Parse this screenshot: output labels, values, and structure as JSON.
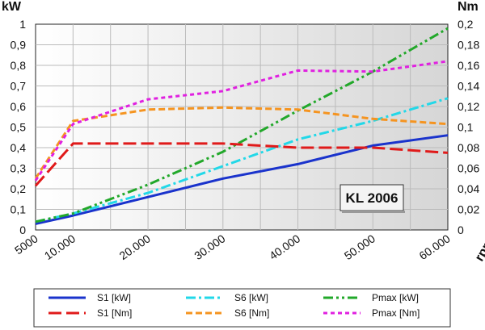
{
  "chart_data": {
    "type": "line",
    "x_axis": {
      "unit_label": "rpm",
      "ticks": [
        5000,
        10000,
        20000,
        30000,
        40000,
        50000,
        60000
      ],
      "tick_labels": [
        "5000",
        "10.000",
        "20.000",
        "30.000",
        "40.000",
        "50.000",
        "60.000"
      ],
      "range": [
        5000,
        60000
      ]
    },
    "y_left": {
      "unit_label": "kW",
      "range": [
        0,
        1
      ],
      "ticks": [
        0,
        0.1,
        0.2,
        0.3,
        0.4,
        0.5,
        0.6,
        0.7,
        0.8,
        0.9,
        1
      ],
      "tick_labels": [
        "0",
        "0,1",
        "0,2",
        "0,3",
        "0,4",
        "0,5",
        "0,6",
        "0,7",
        "0,8",
        "0,9",
        "1"
      ]
    },
    "y_right": {
      "unit_label": "Nm",
      "range": [
        0,
        0.2
      ],
      "ticks": [
        0,
        0.02,
        0.04,
        0.06,
        0.08,
        0.1,
        0.12,
        0.14,
        0.16,
        0.18,
        0.2
      ],
      "tick_labels": [
        "0",
        "0,02",
        "0,04",
        "0,06",
        "0,08",
        "0,1",
        "0,12",
        "0,14",
        "0,16",
        "0,18",
        "0,2"
      ]
    },
    "annotation": "KL 2006",
    "grid": true,
    "legend_position": "bottom",
    "series": [
      {
        "name": "S1 [kW]",
        "axis": "left",
        "color": "#1a33cc",
        "dash": "solid",
        "x": [
          5000,
          10000,
          20000,
          30000,
          40000,
          50000,
          60000
        ],
        "y": [
          0.03,
          0.07,
          0.16,
          0.25,
          0.32,
          0.41,
          0.46
        ]
      },
      {
        "name": "S6 [kW]",
        "axis": "left",
        "color": "#22d8e8",
        "dash": "dashdot",
        "x": [
          5000,
          10000,
          20000,
          30000,
          40000,
          50000,
          60000
        ],
        "y": [
          0.04,
          0.08,
          0.18,
          0.31,
          0.44,
          0.53,
          0.64
        ]
      },
      {
        "name": "Pmax [kW]",
        "axis": "left",
        "color": "#22a82a",
        "dash": "dashdotdot",
        "x": [
          5000,
          10000,
          20000,
          30000,
          40000,
          50000,
          60000
        ],
        "y": [
          0.04,
          0.08,
          0.22,
          0.38,
          0.58,
          0.77,
          0.98
        ]
      },
      {
        "name": "S1 [Nm]",
        "axis": "right",
        "color": "#e01a1a",
        "dash": "longdash",
        "x": [
          5000,
          10000,
          20000,
          30000,
          40000,
          50000,
          60000
        ],
        "y": [
          0.043,
          0.084,
          0.084,
          0.084,
          0.08,
          0.08,
          0.075
        ]
      },
      {
        "name": "S6 [Nm]",
        "axis": "right",
        "color": "#f59420",
        "dash": "dash",
        "x": [
          5000,
          10000,
          20000,
          30000,
          40000,
          50000,
          60000
        ],
        "y": [
          0.05,
          0.106,
          0.117,
          0.119,
          0.117,
          0.108,
          0.103
        ]
      },
      {
        "name": "Pmax [Nm]",
        "axis": "right",
        "color": "#e020e0",
        "dash": "shortdash",
        "x": [
          5000,
          10000,
          20000,
          30000,
          40000,
          50000,
          60000
        ],
        "y": [
          0.048,
          0.103,
          0.127,
          0.135,
          0.155,
          0.154,
          0.164
        ]
      }
    ]
  }
}
